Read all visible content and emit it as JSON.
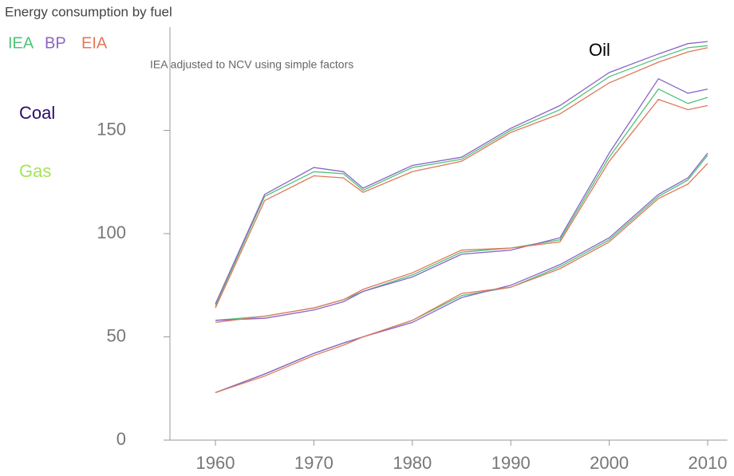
{
  "chart_data": {
    "type": "line",
    "title": "Energy consumption by fuel",
    "subtitle": "IEA adjusted to NCV using simple factors",
    "xlim": [
      1955,
      2012
    ],
    "xticks": [
      1960,
      1970,
      1980,
      1990,
      2000,
      2010
    ],
    "ylim": [
      0,
      200
    ],
    "yticks": [
      0,
      50,
      100,
      150
    ],
    "grid": false,
    "fuels": [
      {
        "name": "Coal",
        "color": "#2a0a6e",
        "x": [
          1960,
          1965,
          1970,
          1973,
          1975,
          1980,
          1985,
          1990,
          1995,
          2000,
          2005,
          2008,
          2010
        ],
        "series": [
          {
            "name": "IEA",
            "color": "#4fc37a",
            "values": [
              58,
              60,
              64,
              68,
              72,
              80,
              91,
              93,
              97,
              137,
              170,
              163,
              166
            ]
          },
          {
            "name": "BP",
            "color": "#8b64c8",
            "values": [
              58,
              59,
              63,
              67,
              72,
              79,
              90,
              92,
              98,
              139,
              175,
              168,
              170
            ]
          },
          {
            "name": "EIA",
            "color": "#e0785a",
            "values": [
              57,
              60,
              64,
              68,
              73,
              81,
              92,
              93,
              96,
              135,
              165,
              160,
              162
            ]
          }
        ]
      },
      {
        "name": "Gas",
        "color": "#a6e35a",
        "x": [
          1960,
          1965,
          1970,
          1973,
          1975,
          1980,
          1985,
          1990,
          1995,
          2000,
          2005,
          2008,
          2010
        ],
        "series": [
          {
            "name": "IEA",
            "color": "#4fc37a",
            "values": [
              23,
              32,
              42,
              47,
              50,
              58,
              70,
              74,
              84,
              97,
              118,
              126,
              138
            ]
          },
          {
            "name": "BP",
            "color": "#8b64c8",
            "values": [
              23,
              32,
              42,
              47,
              50,
              57,
              69,
              75,
              85,
              98,
              119,
              127,
              139
            ]
          },
          {
            "name": "EIA",
            "color": "#e0785a",
            "values": [
              23,
              31,
              41,
              46,
              50,
              58,
              71,
              74,
              83,
              96,
              117,
              124,
              134
            ]
          }
        ]
      },
      {
        "name": "Oil",
        "color": "#000000",
        "x": [
          1960,
          1965,
          1970,
          1973,
          1975,
          1980,
          1985,
          1990,
          1995,
          2000,
          2005,
          2008,
          2010
        ],
        "series": [
          {
            "name": "IEA",
            "color": "#4fc37a",
            "values": [
              65,
              118,
              130,
              129,
              121,
              132,
              136,
              150,
              160,
              176,
              185,
              190,
              191
            ]
          },
          {
            "name": "BP",
            "color": "#8b64c8",
            "values": [
              66,
              119,
              132,
              130,
              122,
              133,
              137,
              151,
              162,
              178,
              187,
              192,
              193
            ]
          },
          {
            "name": "EIA",
            "color": "#e0785a",
            "values": [
              64,
              116,
              128,
              127,
              120,
              130,
              135,
              149,
              158,
              173,
              183,
              188,
              190
            ]
          }
        ]
      }
    ]
  }
}
